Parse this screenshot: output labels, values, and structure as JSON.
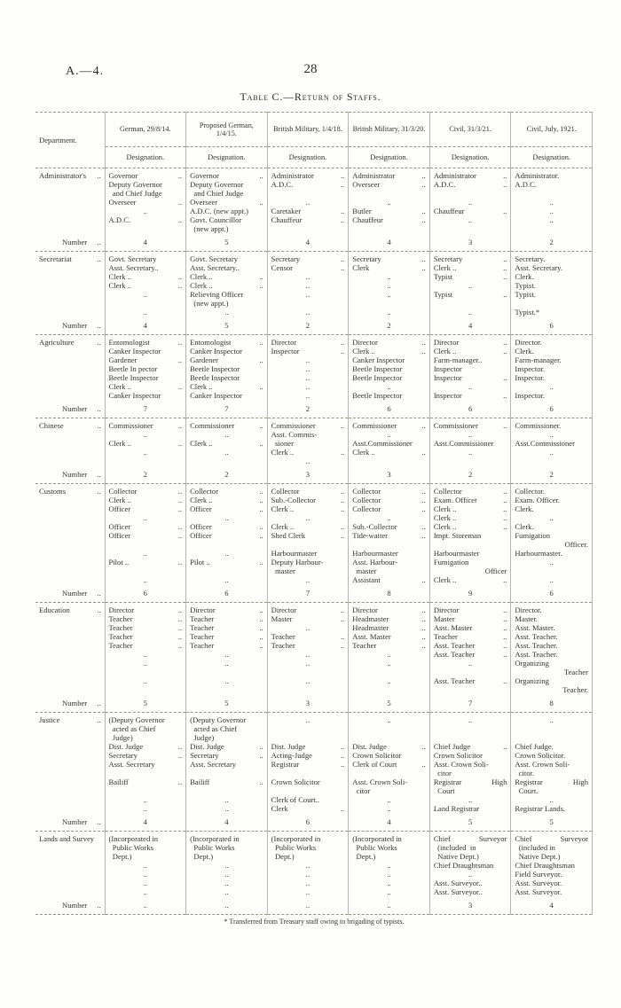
{
  "page": {
    "doc_ref": "A.—4.",
    "page_number": "28",
    "title": "Table C.—Return of Staffs.",
    "footnote": "* Transferred from Treasury staff owing to brigading of typists."
  },
  "table": {
    "department_header": "Department.",
    "designation_header": "Designation.",
    "period_headers": [
      "German, 29/8/14.",
      "Proposed German, 1/4/15.",
      "British Military, 1/4/18.",
      "British Military, 31/3/20.",
      "Civil, 31/3/21.",
      "Civil, July, 1921."
    ],
    "number_label": "Number ..",
    "sections": [
      {
        "department": "Administrator's ..",
        "columns": [
          [
            "Governor ..",
            "Deputy Governor",
            "  and Chief Judge",
            "Overseer ..",
            "..",
            "A.D.C. .."
          ],
          [
            "Governor ..",
            "Deputy Governor",
            "  and Chief Judge",
            "Overseer ..",
            "A.D.C. (new appt.)",
            "Govt. Councillor",
            "  (new appt.)"
          ],
          [
            "Administrator ..",
            "A.D.C. ..",
            "",
            "..",
            "Caretaker ..",
            "Chauffeur .."
          ],
          [
            "Administrator ..",
            "Overseer ..",
            "",
            "..",
            "Butler ..",
            "Chauffeur .."
          ],
          [
            "Administrator ..",
            "A.D.C. ..",
            "",
            "..",
            "Chauffeur ..",
            ".."
          ],
          [
            "Administrator.",
            "A.D.C.",
            "",
            "..",
            "..",
            ".."
          ]
        ],
        "numbers": [
          "4",
          "5",
          "4",
          "4",
          "3",
          "2"
        ]
      },
      {
        "department": "Secretariat ..",
        "columns": [
          [
            "Govt. Secretary",
            "Asst. Secretary..",
            "Clerk .. ..",
            "Clerk .. ..",
            "..",
            "",
            ".."
          ],
          [
            "Govt. Secretary",
            "Asst. Secretary..",
            "Clerk .. ..",
            "Clerk .. ..",
            "Relieving Officer",
            "  (new appt.)",
            ".."
          ],
          [
            "Secretary ..",
            "Censor ..",
            "..",
            "..",
            "..",
            "",
            ".."
          ],
          [
            "Secretary ..",
            "Clerk ..",
            "..",
            "..",
            "..",
            "",
            ".."
          ],
          [
            "Secretary ..",
            "Clerk .. ..",
            "Typist ..",
            "..",
            "Typist ..",
            "",
            ".."
          ],
          [
            "Secretary.",
            "Asst. Secretary.",
            "Clerk.",
            "Typist.",
            "Typist.",
            "",
            "Typist.*"
          ]
        ],
        "numbers": [
          "4",
          "5",
          "2",
          "2",
          "4",
          "6"
        ]
      },
      {
        "department": "Agriculture ..",
        "columns": [
          [
            "Entomologist ..",
            "Canker Inspector",
            "Gardener ..",
            "Beetle In pector",
            "Beetle Inspector",
            "Clerk .. ..",
            "Canker Inspector"
          ],
          [
            "Entomologist ..",
            "Canker Inspector",
            "Gardener ..",
            "Beetle Inspector",
            "Beetle Inspector",
            "Clerk .. ..",
            "Canker Inspector"
          ],
          [
            "Director ..",
            "Inspector ..",
            "..",
            "..",
            "..",
            "..",
            ".."
          ],
          [
            "Director ..",
            "Clerk .. ..",
            "Canker Inspector",
            "Beetle Inspector",
            "Beetle Inspector",
            "..",
            "Beetle Inspector"
          ],
          [
            "Director ..",
            "Clerk .. ..",
            "Farm-manager..",
            "Inspector",
            "Inspector ..",
            "..",
            "Inspector .."
          ],
          [
            "Director.",
            "Clerk.",
            "Farm-manager.",
            "Inspector.",
            "Inspector.",
            "..",
            "Inspector."
          ]
        ],
        "numbers": [
          "7",
          "7",
          "2",
          "6",
          "6",
          "6"
        ]
      },
      {
        "department": "Chinese ..",
        "columns": [
          [
            "Commissioner ..",
            "..",
            "Clerk .. ..",
            ".."
          ],
          [
            "Commissioner ..",
            "..",
            "Clerk .. ..",
            ".."
          ],
          [
            "Commissioner ..",
            "Asst. Commis-",
            "  sioner",
            "Clerk .. ..",
            ".."
          ],
          [
            "Commissioner ..",
            "..",
            "Asst.Commissioner",
            "Clerk .. .."
          ],
          [
            "Commissioner ..",
            "..",
            "Asst.Commissioner",
            ".."
          ],
          [
            "Commissioner.",
            "..",
            "Asst.Commissioner",
            ".."
          ]
        ],
        "numbers": [
          "2",
          "2",
          "3",
          "3",
          "2",
          "2"
        ]
      },
      {
        "department": "Customs ..",
        "columns": [
          [
            "Collector ..",
            "Clerk .. ..",
            "Officer ..",
            "..",
            "Officer ..",
            "Officer ..",
            "",
            "..",
            "Pilot .. ..",
            "",
            ".."
          ],
          [
            "Collector ..",
            "Clerk .. ..",
            "Officer ..",
            "..",
            "Officer ..",
            "Officer ..",
            "",
            "..",
            "Pilot .. ..",
            "",
            ".."
          ],
          [
            "Collector ..",
            "Sub.-Collector ..",
            "Clerk .. ..",
            "..",
            "Clerk .. ..",
            "Shed Clerk ..",
            "",
            "Harbourmaster",
            "Deputy Harbour-",
            "  master",
            ".."
          ],
          [
            "Collector ..",
            "Collector ..",
            "Collector ..",
            "..",
            "Sub.-Collector ..",
            "Tide-waiter ..",
            "",
            "Harbourmaster",
            "Asst. Harbour-",
            "  master",
            "Assistant .."
          ],
          [
            "Collector ..",
            "Exam. Officer ..",
            "Clerk .. ..",
            "Clerk .. ..",
            "Clerk .. ..",
            "Impt. Storeman",
            "",
            "Harbourmaster",
            "Fumigation",
            ">Officer",
            "Clerk .. .."
          ],
          [
            "Collector.",
            "Exam. Officer.",
            "Clerk.",
            "..",
            "Clerk.",
            "Fumigation",
            ">Officer.",
            "Harbourmaster.",
            "..",
            "",
            ".."
          ]
        ],
        "numbers": [
          "6",
          "6",
          "7",
          "8",
          "9",
          "6"
        ]
      },
      {
        "department": "Education ..",
        "columns": [
          [
            "Director ..",
            "Teacher ..",
            "Teacher ..",
            "Teacher ..",
            "Teacher ..",
            "..",
            "..",
            "",
            ".."
          ],
          [
            "Director ..",
            "Teacher ..",
            "Teacher ..",
            "Teacher ..",
            "Teacher ..",
            "..",
            "..",
            "",
            ".."
          ],
          [
            "Director ..",
            "Master ..",
            "..",
            "Teacher ..",
            "Teacher ..",
            "..",
            "..",
            "",
            ".."
          ],
          [
            "Director ..",
            "Headmaster ..",
            "Headmaster ..",
            "Asst. Master ..",
            "Teacher ..",
            "..",
            "..",
            "",
            ".."
          ],
          [
            "Director ..",
            "Master ..",
            "Asst. Master ..",
            "Teacher ..",
            "Asst. Teacher ..",
            "Asst. Teacher ..",
            "..",
            "",
            "Asst. Teacher .."
          ],
          [
            "Director.",
            "Master.",
            "Asst. Master.",
            "Asst. Teacher.",
            "Asst. Teacher.",
            "Asst. Teacher.",
            "Organizing",
            ">Teacher",
            "Organizing",
            ">Teacher."
          ]
        ],
        "numbers": [
          "5",
          "5",
          "3",
          "5",
          "7",
          "8"
        ]
      },
      {
        "department": "Justice ..",
        "columns": [
          [
            "(Deputy Governor",
            "  acted as Chief",
            "  Judge)",
            "Dist. Judge ..",
            "Secretary ..",
            "Asst. Secretary",
            "",
            "Bailiff ..",
            "",
            "..",
            ".."
          ],
          [
            "(Deputy Governor",
            "  acted as Chief",
            "  Judge)",
            "Dist. Judge ..",
            "Secretary ..",
            "Asst. Secretary",
            "",
            "Bailiff ..",
            "",
            "..",
            ".."
          ],
          [
            "..",
            "",
            "",
            "Dist. Judge ..",
            "Acting-Judge ..",
            "Registrar ..",
            "",
            "Crown Solicitor",
            "",
            "Clerk of Court..",
            "Clerk .."
          ],
          [
            "..",
            "",
            "",
            "Dist. Judge ..",
            "Crown Solicitor",
            "Clerk of Court ..",
            "",
            "Asst. Crown Soli-",
            "  citor",
            "..",
            ".."
          ],
          [
            "..",
            "",
            "",
            "Chief Judge ..",
            "Crown Solicitor",
            "Asst. Crown Soli-",
            "  citor",
            "Registrar|High",
            "  Court",
            "..",
            "Land Registrar"
          ],
          [
            "..",
            "",
            "",
            "Chief Judge.",
            "Crown Solicitor.",
            "Asst. Crown Soli-",
            "  citor.",
            "Registrar|High",
            "  Court.",
            "..",
            "Registrar Lands."
          ]
        ],
        "numbers": [
          "4",
          "4",
          "6",
          "4",
          "5",
          "5"
        ]
      },
      {
        "department": "Lands and Survey",
        "columns": [
          [
            "(Incorporated in",
            "  Public Works",
            "  Dept.)",
            "..",
            "..",
            "..",
            ".."
          ],
          [
            "(Incorporated in",
            "  Public Works",
            "  Dept.)",
            "..",
            "..",
            "..",
            ".."
          ],
          [
            "(Incorporated in",
            "  Public Works",
            "  Dept.)",
            "..",
            "..",
            "..",
            ".."
          ],
          [
            "(Incorporated in",
            "  Public Works",
            "  Dept.)",
            "..",
            "..",
            "..",
            ".."
          ],
          [
            "Chief|Surveyor",
            "  (included  in",
            "  Native Dept.)",
            "Chief Draughtsman",
            "..",
            "Asst. Surveyor..",
            "Asst. Surveyor.."
          ],
          [
            "Chief|Surveyor",
            "  (included in",
            "  Native Dept.)",
            "Chief Draughtsman",
            "Field Surveyor.",
            "Asst. Surveyor.",
            "Asst. Surveyor."
          ]
        ],
        "numbers": [
          "..",
          "..",
          "..",
          "..",
          "3",
          "4"
        ]
      }
    ]
  }
}
